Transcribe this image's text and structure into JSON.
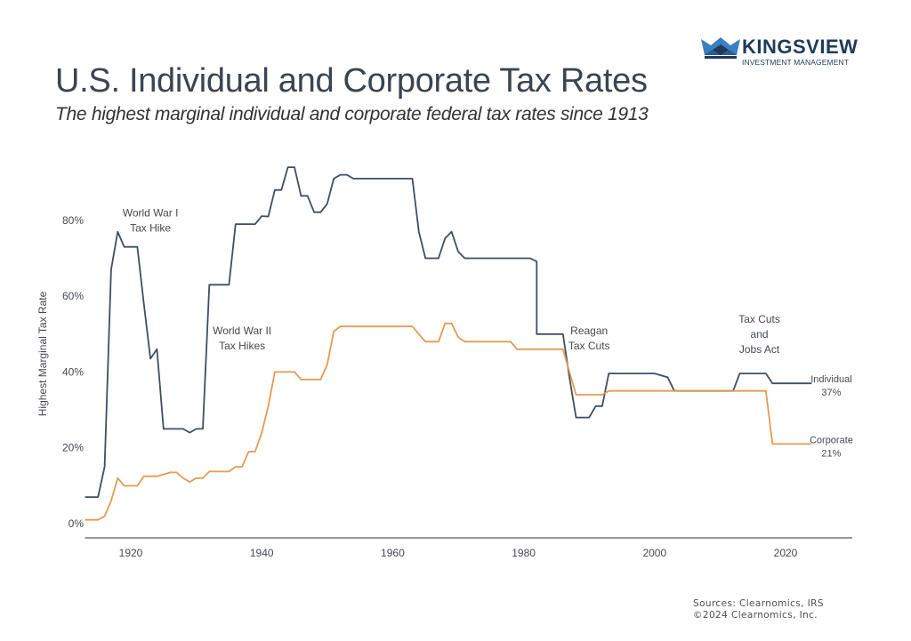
{
  "header": {
    "title": "U.S. Individual and Corporate Tax Rates",
    "subtitle": "The highest marginal individual and corporate federal tax rates since 1913"
  },
  "logo": {
    "name": "KINGSVIEW",
    "tagline": "INVESTMENT MANAGEMENT",
    "colors": {
      "dark": "#1f3a5c",
      "light": "#3a7fc1"
    }
  },
  "footer": {
    "sources": "Sources: Clearnomics, IRS",
    "copyright": "©2024 Clearnomics, Inc."
  },
  "chart_data": {
    "type": "line",
    "title": "U.S. Individual and Corporate Tax Rates",
    "xlabel": "",
    "ylabel": "Highest Marginal Tax Rate",
    "xlim": [
      1913,
      2031
    ],
    "ylim": [
      -3,
      95
    ],
    "xticks": [
      1920,
      1940,
      1960,
      1980,
      2000,
      2020
    ],
    "yticks": [
      0,
      20,
      40,
      60,
      80
    ],
    "ytick_labels": [
      "0%",
      "20%",
      "40%",
      "60%",
      "80%"
    ],
    "grid": false,
    "series": [
      {
        "name": "Individual",
        "color": "#3f4f60",
        "end_label": "Individual",
        "end_value_label": "37%",
        "points": [
          [
            1913,
            7
          ],
          [
            1915,
            7
          ],
          [
            1916,
            15
          ],
          [
            1917,
            67
          ],
          [
            1918,
            77
          ],
          [
            1919,
            73
          ],
          [
            1921,
            73
          ],
          [
            1922,
            58
          ],
          [
            1923,
            43.5
          ],
          [
            1924,
            46
          ],
          [
            1925,
            25
          ],
          [
            1928,
            25
          ],
          [
            1929,
            24
          ],
          [
            1930,
            25
          ],
          [
            1931,
            25
          ],
          [
            1932,
            63
          ],
          [
            1935,
            63
          ],
          [
            1936,
            79
          ],
          [
            1939,
            79
          ],
          [
            1940,
            81.1
          ],
          [
            1941,
            81
          ],
          [
            1942,
            88
          ],
          [
            1943,
            88
          ],
          [
            1944,
            94
          ],
          [
            1945,
            94
          ],
          [
            1946,
            86.45
          ],
          [
            1947,
            86.45
          ],
          [
            1948,
            82.13
          ],
          [
            1949,
            82.13
          ],
          [
            1950,
            84.36
          ],
          [
            1951,
            91
          ],
          [
            1952,
            92
          ],
          [
            1953,
            92
          ],
          [
            1954,
            91
          ],
          [
            1963,
            91
          ],
          [
            1964,
            77
          ],
          [
            1965,
            70
          ],
          [
            1967,
            70
          ],
          [
            1968,
            75.25
          ],
          [
            1969,
            77
          ],
          [
            1970,
            71.75
          ],
          [
            1971,
            70
          ],
          [
            1981,
            70
          ],
          [
            1982,
            69.13
          ],
          [
            1982,
            50
          ],
          [
            1986,
            50
          ],
          [
            1987,
            38.5
          ],
          [
            1988,
            28
          ],
          [
            1990,
            28
          ],
          [
            1991,
            31
          ],
          [
            1992,
            31
          ],
          [
            1993,
            39.6
          ],
          [
            2000,
            39.6
          ],
          [
            2001,
            39.1
          ],
          [
            2002,
            38.6
          ],
          [
            2003,
            35
          ],
          [
            2012,
            35
          ],
          [
            2013,
            39.6
          ],
          [
            2017,
            39.6
          ],
          [
            2018,
            37
          ],
          [
            2024,
            37
          ]
        ]
      },
      {
        "name": "Corporate",
        "color": "#e39b55",
        "end_label": "Corporate",
        "end_value_label": "21%",
        "points": [
          [
            1913,
            1
          ],
          [
            1915,
            1
          ],
          [
            1916,
            2
          ],
          [
            1917,
            6
          ],
          [
            1918,
            12
          ],
          [
            1919,
            10
          ],
          [
            1921,
            10
          ],
          [
            1922,
            12.5
          ],
          [
            1924,
            12.5
          ],
          [
            1925,
            13
          ],
          [
            1926,
            13.5
          ],
          [
            1927,
            13.5
          ],
          [
            1928,
            12
          ],
          [
            1929,
            11
          ],
          [
            1930,
            12
          ],
          [
            1931,
            12
          ],
          [
            1932,
            13.75
          ],
          [
            1935,
            13.75
          ],
          [
            1936,
            15
          ],
          [
            1937,
            15
          ],
          [
            1938,
            19
          ],
          [
            1939,
            19
          ],
          [
            1940,
            24
          ],
          [
            1941,
            31
          ],
          [
            1942,
            40
          ],
          [
            1945,
            40
          ],
          [
            1946,
            38
          ],
          [
            1949,
            38
          ],
          [
            1950,
            42
          ],
          [
            1951,
            50.75
          ],
          [
            1952,
            52
          ],
          [
            1963,
            52
          ],
          [
            1964,
            50
          ],
          [
            1965,
            48
          ],
          [
            1967,
            48
          ],
          [
            1968,
            52.8
          ],
          [
            1969,
            52.8
          ],
          [
            1970,
            49.2
          ],
          [
            1971,
            48
          ],
          [
            1978,
            48
          ],
          [
            1979,
            46
          ],
          [
            1986,
            46
          ],
          [
            1987,
            40
          ],
          [
            1988,
            34
          ],
          [
            1992,
            34
          ],
          [
            1993,
            35
          ],
          [
            2017,
            35
          ],
          [
            2018,
            21
          ],
          [
            2024,
            21
          ]
        ]
      }
    ],
    "annotations": [
      {
        "lines": [
          "World War I",
          "Tax Hike"
        ],
        "x": 1923,
        "y": 81
      },
      {
        "lines": [
          "World War II",
          "Tax Hikes"
        ],
        "x": 1937,
        "y": 50
      },
      {
        "lines": [
          "Reagan",
          "Tax Cuts"
        ],
        "x": 1990,
        "y": 50
      },
      {
        "lines": [
          "Tax Cuts",
          "and",
          "Jobs Act"
        ],
        "x": 2016,
        "y": 53
      }
    ]
  }
}
